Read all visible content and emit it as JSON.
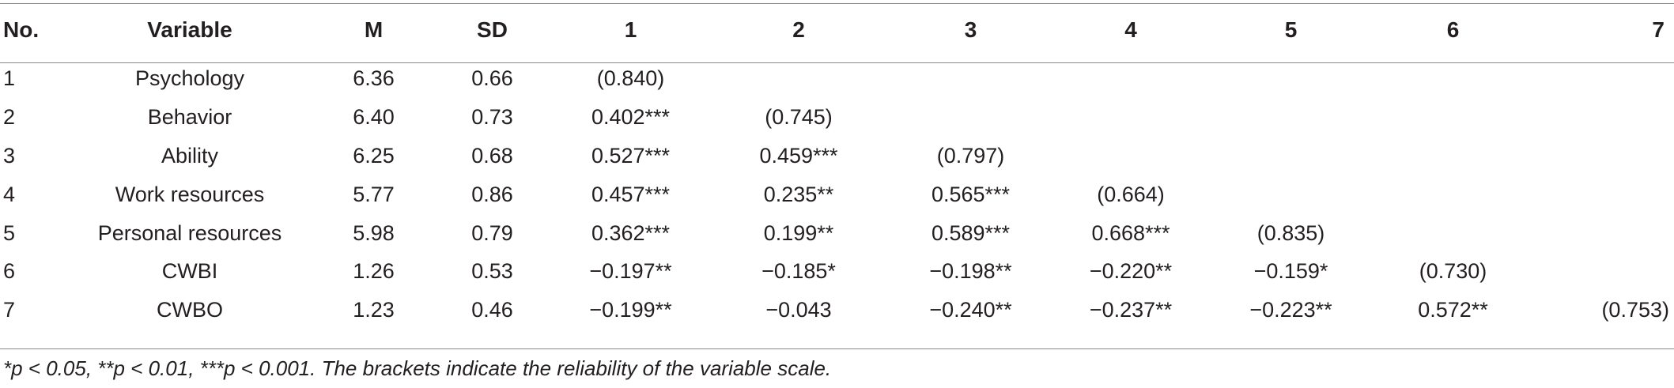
{
  "table": {
    "headers": [
      "No.",
      "Variable",
      "M",
      "SD",
      "1",
      "2",
      "3",
      "4",
      "5",
      "6",
      "7"
    ],
    "rows": [
      [
        "1",
        "Psychology",
        "6.36",
        "0.66",
        "(0.840)",
        "",
        "",
        "",
        "",
        "",
        ""
      ],
      [
        "2",
        "Behavior",
        "6.40",
        "0.73",
        "0.402***",
        "(0.745)",
        "",
        "",
        "",
        "",
        ""
      ],
      [
        "3",
        "Ability",
        "6.25",
        "0.68",
        "0.527***",
        "0.459***",
        "(0.797)",
        "",
        "",
        "",
        ""
      ],
      [
        "4",
        "Work resources",
        "5.77",
        "0.86",
        "0.457***",
        "0.235**",
        "0.565***",
        "(0.664)",
        "",
        "",
        ""
      ],
      [
        "5",
        "Personal resources",
        "5.98",
        "0.79",
        "0.362***",
        "0.199**",
        "0.589***",
        "0.668***",
        "(0.835)",
        "",
        ""
      ],
      [
        "6",
        "CWBI",
        "1.26",
        "0.53",
        "−0.197**",
        "−0.185*",
        "−0.198**",
        "−0.220**",
        "−0.159*",
        "(0.730)",
        ""
      ],
      [
        "7",
        "CWBO",
        "1.23",
        "0.46",
        "−0.199**",
        "−0.043",
        "−0.240**",
        "−0.237**",
        "−0.223**",
        "0.572**",
        "(0.753)"
      ]
    ]
  },
  "footnote": "*p < 0.05, **p < 0.01, ***p < 0.001. The brackets indicate the reliability of the variable scale."
}
